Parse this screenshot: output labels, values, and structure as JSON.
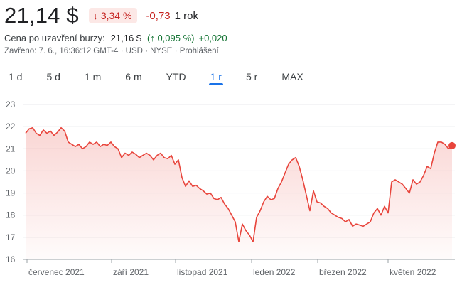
{
  "quote": {
    "price": "21,14 $",
    "change_pct": "3,34 %",
    "change_abs": "-0,73",
    "period": "1 rok"
  },
  "after_hours": {
    "label": "Cena po uzavření burzy:",
    "price": "21,16 $",
    "change_pct": "(↑ 0,095 %)",
    "change_abs": "+0,020"
  },
  "meta": {
    "closed": "Zavřeno: 7. 6., 16:36:12 GMT-4 · USD · NYSE · ",
    "disclaimer": "Prohlášení"
  },
  "tabs": [
    {
      "label": "1 d",
      "active": false
    },
    {
      "label": "5 d",
      "active": false
    },
    {
      "label": "1 m",
      "active": false
    },
    {
      "label": "6 m",
      "active": false
    },
    {
      "label": "YTD",
      "active": false
    },
    {
      "label": "1 r",
      "active": true
    },
    {
      "label": "5 r",
      "active": false
    },
    {
      "label": "MAX",
      "active": false
    }
  ],
  "colors": {
    "negative": "#c5221f",
    "positive": "#137333",
    "line": "#e8453c",
    "active_tab": "#1a73e8"
  },
  "icons": {
    "down_arrow": "arrow-down-icon",
    "up_arrow": "arrow-up-icon"
  },
  "chart_data": {
    "type": "area",
    "y_ticks": [
      23,
      22,
      21,
      20,
      19,
      18,
      17,
      16
    ],
    "ylim": [
      16,
      23
    ],
    "x_labels": [
      "červenec 2021",
      "září 2021",
      "listopad 2021",
      "leden 2022",
      "březen 2022",
      "květen 2022"
    ],
    "grid": true,
    "series": [
      {
        "values": [
          21.7,
          21.9,
          21.95,
          21.7,
          21.6,
          21.85,
          21.7,
          21.8,
          21.6,
          21.75,
          21.95,
          21.8,
          21.3,
          21.2,
          21.1,
          21.2,
          21.0,
          21.1,
          21.3,
          21.2,
          21.3,
          21.1,
          21.2,
          21.15,
          21.3,
          21.1,
          21.0,
          20.6,
          20.8,
          20.7,
          20.85,
          20.75,
          20.6,
          20.7,
          20.8,
          20.7,
          20.5,
          20.7,
          20.8,
          20.6,
          20.55,
          20.7,
          20.3,
          20.5,
          19.7,
          19.3,
          19.55,
          19.3,
          19.35,
          19.2,
          19.1,
          18.95,
          19.0,
          18.75,
          18.7,
          18.8,
          18.5,
          18.3,
          18.0,
          17.7,
          16.8,
          17.6,
          17.3,
          17.1,
          16.8,
          17.9,
          18.2,
          18.6,
          18.85,
          18.7,
          18.75,
          19.2,
          19.5,
          19.9,
          20.3,
          20.5,
          20.6,
          20.2,
          19.6,
          18.9,
          18.2,
          19.1,
          18.6,
          18.55,
          18.4,
          18.3,
          18.1,
          18.0,
          17.9,
          17.85,
          17.7,
          17.8,
          17.5,
          17.6,
          17.55,
          17.5,
          17.6,
          17.7,
          18.1,
          18.3,
          18.0,
          18.4,
          18.1,
          19.5,
          19.6,
          19.5,
          19.4,
          19.2,
          19.0,
          19.6,
          19.4,
          19.5,
          19.8,
          20.2,
          20.1,
          20.8,
          21.3,
          21.3,
          21.2,
          21.0,
          21.14
        ]
      }
    ]
  }
}
